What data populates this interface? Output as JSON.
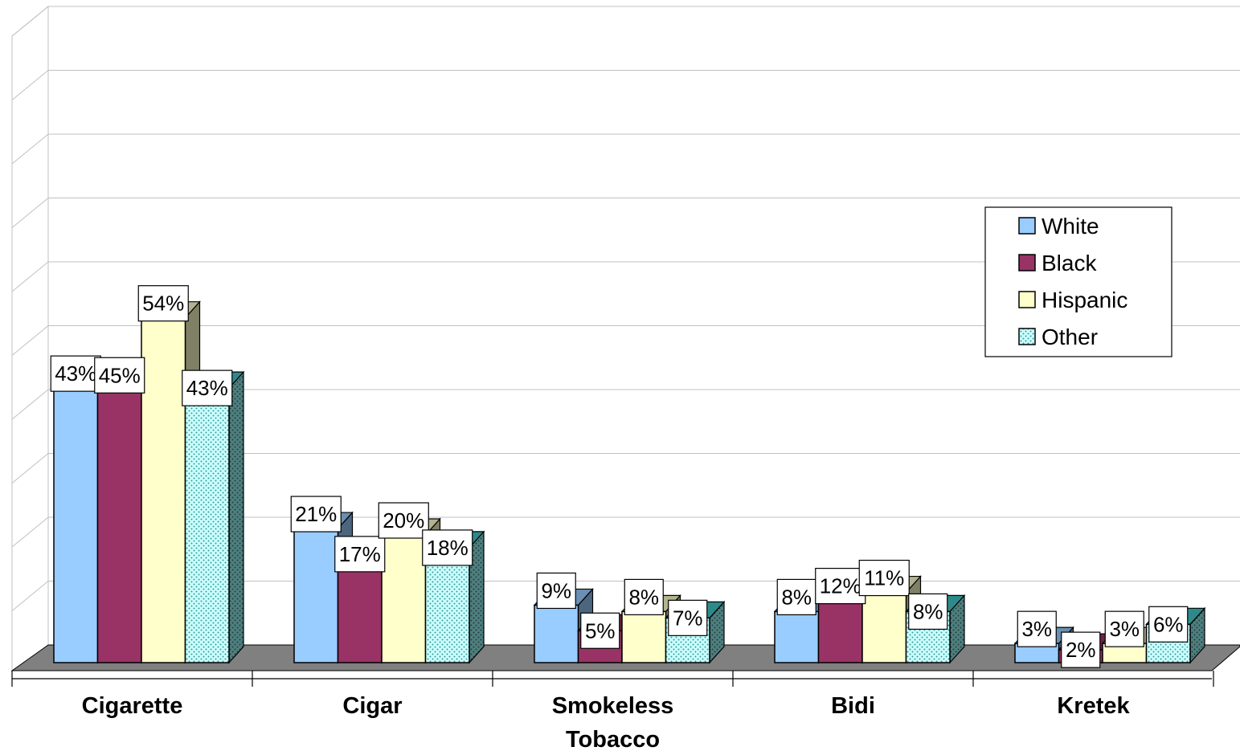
{
  "chart_data": {
    "type": "bar",
    "title": "",
    "xlabel": "",
    "ylabel": "",
    "ylim": [
      0,
      100
    ],
    "grid": true,
    "three_d": true,
    "legend_position": "right",
    "categories": [
      "Cigarette",
      "Cigar",
      "Smokeless Tobacco",
      "Bidi",
      "Kretek"
    ],
    "category_label_lines": [
      [
        "Cigarette"
      ],
      [
        "Cigar"
      ],
      [
        "Smokeless",
        "Tobacco"
      ],
      [
        "Bidi"
      ],
      [
        "Kretek"
      ]
    ],
    "series": [
      {
        "name": "White",
        "values": [
          43,
          21,
          9,
          8,
          3
        ],
        "labels": [
          "43%",
          "21%",
          "9%",
          "8%",
          "3%"
        ],
        "color": "#99CCFF",
        "pattern": "solid"
      },
      {
        "name": "Black",
        "values": [
          45,
          17,
          5,
          12,
          2
        ],
        "labels": [
          "45%",
          "17%",
          "5%",
          "12%",
          "2%"
        ],
        "color": "#993366",
        "pattern": "solid"
      },
      {
        "name": "Hispanic",
        "values": [
          54,
          20,
          8,
          11,
          3
        ],
        "labels": [
          "54%",
          "20%",
          "8%",
          "11%",
          "3%"
        ],
        "color": "#FFFFCC",
        "pattern": "solid"
      },
      {
        "name": "Other",
        "values": [
          43,
          18,
          7,
          8,
          6
        ],
        "labels": [
          "43%",
          "18%",
          "7%",
          "8%",
          "6%"
        ],
        "color": "#CCFFFF",
        "pattern": "dotted-teal"
      }
    ],
    "colors": {
      "floor": "#808080",
      "gridline": "#C0C0C0",
      "dot_color": "#339999"
    }
  }
}
